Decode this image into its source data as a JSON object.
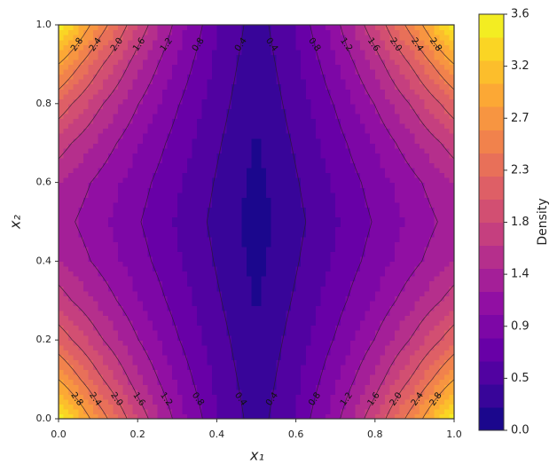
{
  "chart_data": {
    "type": "contour",
    "xlabel": "x₁",
    "ylabel": "x₂",
    "colorbar_label": "Density",
    "colormap": "plasma",
    "x": [
      0,
      0.1,
      0.2,
      0.3,
      0.4,
      0.5,
      0.6,
      0.7,
      0.8,
      0.9,
      1
    ],
    "y": [
      0,
      0.1,
      0.2,
      0.3,
      0.4,
      0.5,
      0.6,
      0.7,
      0.8,
      0.9,
      1
    ],
    "z": [
      [
        3.6,
        2.6,
        1.78,
        1.12,
        0.62,
        0.3,
        0.62,
        1.12,
        1.78,
        2.6,
        3.6
      ],
      [
        2.8,
        2.08,
        1.46,
        0.96,
        0.55,
        0.26,
        0.55,
        0.96,
        1.46,
        2.08,
        2.8
      ],
      [
        2.18,
        1.66,
        1.21,
        0.82,
        0.49,
        0.22,
        0.49,
        0.82,
        1.21,
        1.66,
        2.18
      ],
      [
        1.72,
        1.36,
        1.02,
        0.71,
        0.43,
        0.18,
        0.43,
        0.71,
        1.02,
        1.36,
        1.72
      ],
      [
        1.42,
        1.15,
        0.89,
        0.63,
        0.38,
        0.14,
        0.38,
        0.63,
        0.89,
        1.15,
        1.42
      ],
      [
        1.3,
        1.06,
        0.82,
        0.58,
        0.34,
        0.1,
        0.34,
        0.58,
        0.82,
        1.06,
        1.3
      ],
      [
        1.42,
        1.15,
        0.89,
        0.63,
        0.38,
        0.14,
        0.38,
        0.63,
        0.89,
        1.15,
        1.42
      ],
      [
        1.72,
        1.36,
        1.02,
        0.71,
        0.43,
        0.18,
        0.43,
        0.71,
        1.02,
        1.36,
        1.72
      ],
      [
        2.18,
        1.66,
        1.21,
        0.82,
        0.49,
        0.22,
        0.49,
        0.82,
        1.21,
        1.66,
        2.18
      ],
      [
        2.8,
        2.08,
        1.46,
        0.96,
        0.55,
        0.26,
        0.55,
        0.96,
        1.46,
        2.08,
        2.8
      ],
      [
        3.6,
        2.6,
        1.78,
        1.12,
        0.62,
        0.3,
        0.62,
        1.12,
        1.78,
        2.6,
        3.6
      ]
    ],
    "fill_levels": [
      0,
      0.2,
      0.4,
      0.6,
      0.8,
      1,
      1.2,
      1.4,
      1.6,
      1.8,
      2,
      2.2,
      2.4,
      2.6,
      2.8,
      3,
      3.2,
      3.4,
      3.6
    ],
    "line_levels": [
      0.4,
      0.8,
      1.2,
      1.6,
      {
        "value": 2,
        "label": "2.0"
      },
      2.4,
      2.8
    ],
    "xlim": [
      0,
      1
    ],
    "ylim": [
      0,
      1
    ],
    "xticks": [
      {
        "value": 0,
        "label": "0.0"
      },
      0.2,
      0.4,
      0.6,
      0.8,
      {
        "value": 1,
        "label": "1.0"
      }
    ],
    "yticks": [
      {
        "value": 0,
        "label": "0.0"
      },
      0.2,
      0.4,
      0.6,
      0.8,
      {
        "value": 1,
        "label": "1.0"
      }
    ],
    "clim": [
      0,
      3.6
    ],
    "cticks": [
      {
        "value": 0,
        "label": "0.0"
      },
      {
        "value": 0.45,
        "label": "0.5"
      },
      0.9,
      {
        "value": 1.35,
        "label": "1.4"
      },
      1.8,
      {
        "value": 2.25,
        "label": "2.3"
      },
      2.7,
      {
        "value": 3.15,
        "label": "3.2"
      },
      3.6
    ]
  }
}
